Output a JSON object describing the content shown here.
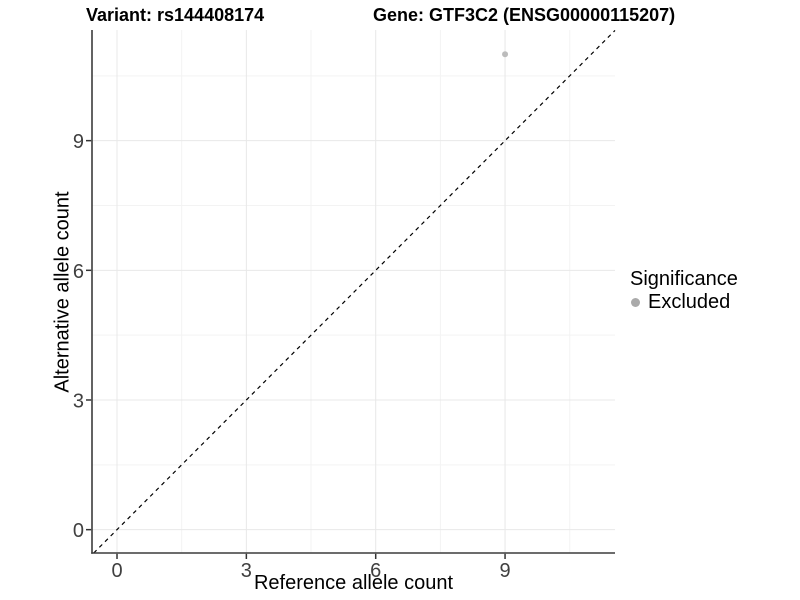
{
  "chart_data": {
    "type": "scatter",
    "title_left": "Variant: rs144408174",
    "title_right": "Gene: GTF3C2 (ENSG00000115207)",
    "xlabel": "Reference allele count",
    "ylabel": "Alternative allele count",
    "xlim": [
      -0.58,
      11.55
    ],
    "ylim": [
      -0.54,
      11.56
    ],
    "x_major_ticks": [
      0,
      3,
      6,
      9
    ],
    "y_major_ticks": [
      0,
      3,
      6,
      9
    ],
    "x_minor_ticks": [
      1.5,
      4.5,
      7.5,
      10.5
    ],
    "y_minor_ticks": [
      1.5,
      4.5,
      7.5,
      10.5
    ],
    "grid": true,
    "reference_line": {
      "type": "identity",
      "style": "dashed",
      "color": "#000000"
    },
    "series": [
      {
        "name": "Excluded",
        "color": "#bcbcbc",
        "points": [
          {
            "x": 9,
            "y": 11
          }
        ]
      }
    ],
    "legend": {
      "title": "Significance",
      "position": "right",
      "items": [
        {
          "label": "Excluded",
          "color": "#aaaaaa"
        }
      ]
    },
    "colors": {
      "grid_major": "#e8e8e8",
      "grid_minor": "#f3f3f3",
      "axis_line": "#3c3c3c",
      "tick_mark": "#333333",
      "tick_label": "#404040"
    }
  }
}
